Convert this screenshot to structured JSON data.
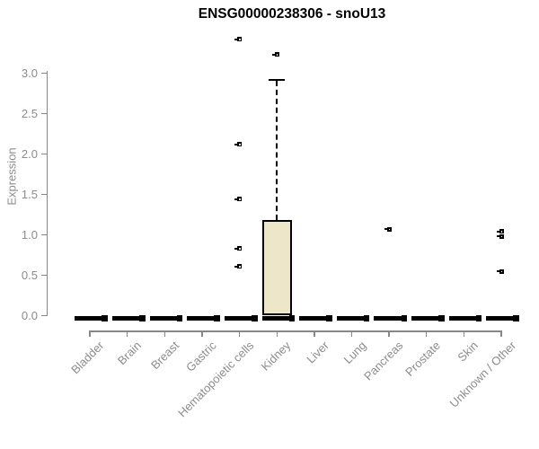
{
  "chart_data": {
    "type": "boxplot",
    "title": "ENSG00000238306 - snoU13",
    "ylabel": "Expression",
    "xlabel": "",
    "ylim": [
      0,
      3.4
    ],
    "yticks": [
      0.0,
      0.5,
      1.0,
      1.5,
      2.0,
      2.5,
      3.0
    ],
    "grid": false,
    "legend": "none",
    "categories": [
      "Bladder",
      "Brain",
      "Breast",
      "Gastric",
      "Hematopoietic cells",
      "Kidney",
      "Liver",
      "Lung",
      "Pancreas",
      "Prostate",
      "Skin",
      "Unknown / Other"
    ],
    "boxes": [
      {
        "category": "Bladder",
        "whisker_low": 0,
        "q1": 0,
        "median": 0,
        "q3": 0,
        "whisker_high": 0,
        "outliers": []
      },
      {
        "category": "Brain",
        "whisker_low": 0,
        "q1": 0,
        "median": 0,
        "q3": 0,
        "whisker_high": 0,
        "outliers": []
      },
      {
        "category": "Breast",
        "whisker_low": 0,
        "q1": 0,
        "median": 0,
        "q3": 0,
        "whisker_high": 0,
        "outliers": []
      },
      {
        "category": "Gastric",
        "whisker_low": 0,
        "q1": 0,
        "median": 0,
        "q3": 0,
        "whisker_high": 0,
        "outliers": []
      },
      {
        "category": "Hematopoietic cells",
        "whisker_low": 0,
        "q1": 0,
        "median": 0,
        "q3": 0,
        "whisker_high": 0,
        "outliers": [
          0.61,
          0.83,
          1.44,
          2.12,
          3.42
        ]
      },
      {
        "category": "Kidney",
        "whisker_low": 0,
        "q1": 0,
        "median": 0.02,
        "q3": 1.18,
        "whisker_high": 2.92,
        "outliers": [
          3.23
        ]
      },
      {
        "category": "Liver",
        "whisker_low": 0,
        "q1": 0,
        "median": 0,
        "q3": 0,
        "whisker_high": 0,
        "outliers": []
      },
      {
        "category": "Lung",
        "whisker_low": 0,
        "q1": 0,
        "median": 0,
        "q3": 0,
        "whisker_high": 0,
        "outliers": []
      },
      {
        "category": "Pancreas",
        "whisker_low": 0,
        "q1": 0,
        "median": 0,
        "q3": 0,
        "whisker_high": 0,
        "outliers": [
          1.07
        ]
      },
      {
        "category": "Prostate",
        "whisker_low": 0,
        "q1": 0,
        "median": 0,
        "q3": 0,
        "whisker_high": 0,
        "outliers": []
      },
      {
        "category": "Skin",
        "whisker_low": 0,
        "q1": 0,
        "median": 0,
        "q3": 0,
        "whisker_high": 0,
        "outliers": []
      },
      {
        "category": "Unknown / Other",
        "whisker_low": 0,
        "q1": 0,
        "median": 0,
        "q3": 0,
        "whisker_high": 0,
        "outliers": [
          0.55,
          0.98,
          1.04
        ]
      }
    ],
    "colors": {
      "box_fill": "#ede6c9",
      "box_border": "#000000",
      "median": "#000000",
      "outlier": "#000000",
      "axis": "#878787",
      "tick_text": "#8c8c8c",
      "title_text": "#000000",
      "background": "#ffffff"
    }
  }
}
